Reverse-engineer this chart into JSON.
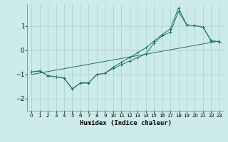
{
  "xlabel": "Humidex (Indice chaleur)",
  "xlim": [
    -0.5,
    23.5
  ],
  "ylim": [
    -2.5,
    1.9
  ],
  "bg_color": "#cdeaea",
  "grid_color": "#aacece",
  "line_color": "#1a6e6e",
  "x_ticks": [
    0,
    1,
    2,
    3,
    4,
    5,
    6,
    7,
    8,
    9,
    10,
    11,
    12,
    13,
    14,
    15,
    16,
    17,
    18,
    19,
    20,
    21,
    22,
    23
  ],
  "y_ticks": [
    -2,
    -1,
    0,
    1
  ],
  "series1_y": [
    -0.9,
    -0.85,
    -1.05,
    -1.1,
    -1.15,
    -1.6,
    -1.35,
    -1.35,
    -1.0,
    -0.95,
    -0.75,
    -0.6,
    -0.45,
    -0.3,
    -0.15,
    0.3,
    0.6,
    0.75,
    1.6,
    1.05,
    1.02,
    0.95,
    0.4,
    0.35
  ],
  "series2_y": [
    -0.9,
    -0.85,
    -1.05,
    -1.1,
    -1.15,
    -1.6,
    -1.35,
    -1.35,
    -1.0,
    -0.95,
    -0.7,
    -0.5,
    -0.3,
    -0.1,
    0.1,
    0.38,
    0.65,
    0.88,
    1.75,
    1.05,
    1.02,
    0.95,
    0.38,
    0.35
  ],
  "trend_x": [
    0,
    23
  ],
  "trend_y": [
    -1.0,
    0.38
  ]
}
